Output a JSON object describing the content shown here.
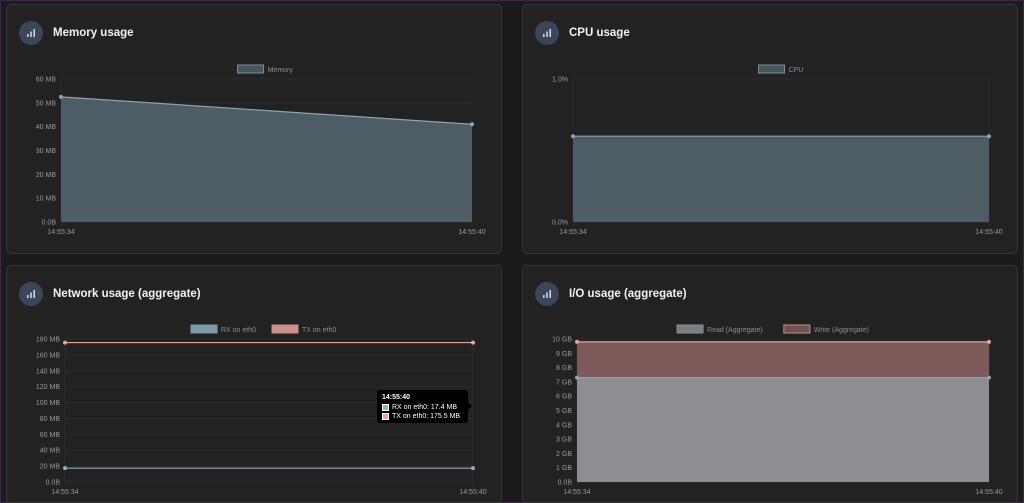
{
  "cards": [
    {
      "title": "Memory usage",
      "icon": "bar-chart-icon"
    },
    {
      "title": "CPU usage",
      "icon": "bar-chart-icon"
    },
    {
      "title": "Network usage (aggregate)",
      "icon": "bar-chart-icon"
    },
    {
      "title": "I/O usage (aggregate)",
      "icon": "bar-chart-icon"
    }
  ],
  "tooltip": {
    "title": "14:55:40",
    "rows": [
      "RX on eth0: 17.4 MB",
      "TX on eth0: 175.5 MB"
    ],
    "colors": [
      "#8faec1",
      "#e9a39a"
    ]
  },
  "chart_data": [
    {
      "type": "area",
      "x": [
        "14:55:34",
        "14:55:40"
      ],
      "series": [
        {
          "name": "Memory",
          "values": [
            52.5,
            41
          ],
          "color": "#8aa5b5",
          "fill": "#4e5d65"
        }
      ],
      "ylim": [
        0,
        60
      ],
      "yticks": [
        "0.0B",
        "10 MB",
        "20 MB",
        "30 MB",
        "40 MB",
        "50 MB",
        "60 MB"
      ],
      "legend": "top"
    },
    {
      "type": "area",
      "x": [
        "14:55:34",
        "14:55:40"
      ],
      "series": [
        {
          "name": "CPU",
          "values": [
            0.6,
            0.6
          ],
          "color": "#8aa5b5",
          "fill": "#4e5d65"
        }
      ],
      "ylim": [
        0,
        1.0
      ],
      "yticks": [
        "0.0%",
        "1.0%"
      ],
      "legend": "top"
    },
    {
      "type": "line",
      "x": [
        "14:55:34",
        "14:55:40"
      ],
      "series": [
        {
          "name": "RX on eth0",
          "values": [
            17.4,
            17.4
          ],
          "color": "#8faec1"
        },
        {
          "name": "TX on eth0",
          "values": [
            175.5,
            175.5
          ],
          "color": "#e9a39a"
        }
      ],
      "ylim": [
        0,
        180
      ],
      "yticks": [
        "0.0B",
        "20 MB",
        "40 MB",
        "60 MB",
        "80 MB",
        "100 MB",
        "120 MB",
        "140 MB",
        "160 MB",
        "180 MB"
      ],
      "legend": "top"
    },
    {
      "type": "area",
      "x": [
        "14:55:34",
        "14:55:40"
      ],
      "series": [
        {
          "name": "Read (Aggregate)",
          "values": [
            7.3,
            7.3
          ],
          "color": "#8aa5b5",
          "fill": "#8e8d91"
        },
        {
          "name": "Write (Aggregate)",
          "values": [
            9.8,
            9.8
          ],
          "color": "#e9a39a",
          "fill": "#7b5a59"
        }
      ],
      "ylim": [
        0,
        10
      ],
      "yticks": [
        "0.0B",
        "1 GB",
        "2 GB",
        "3 GB",
        "4 GB",
        "5 GB",
        "6 GB",
        "7 GB",
        "8 GB",
        "9 GB",
        "10 GB"
      ],
      "legend": "top"
    }
  ]
}
